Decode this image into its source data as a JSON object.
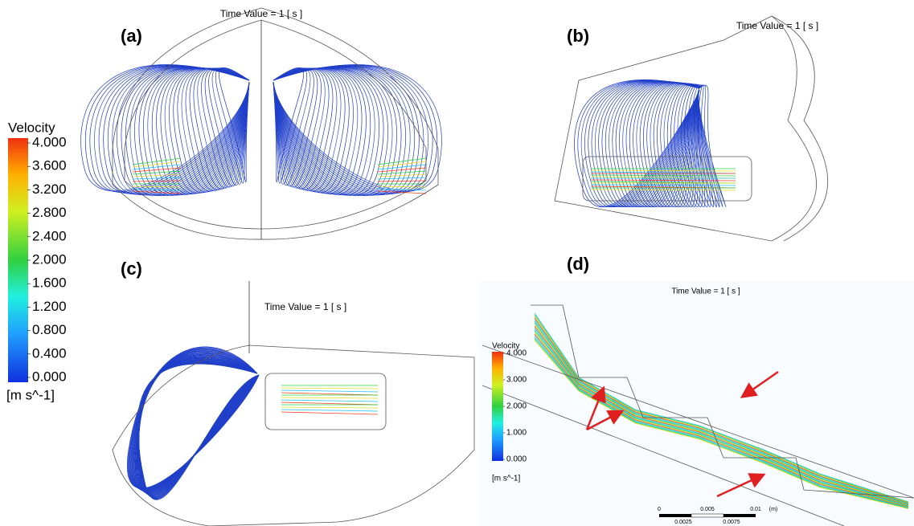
{
  "figure": {
    "legend": {
      "title": "Velocity",
      "lim": [
        0,
        4
      ],
      "unit": "[m s^-1]",
      "ticks": [
        {
          "value": 4,
          "label": "4.000"
        },
        {
          "value": 3.6,
          "label": "3.600"
        },
        {
          "value": 3.2,
          "label": "3.200"
        },
        {
          "value": 2.8,
          "label": "2.800"
        },
        {
          "value": 2.4,
          "label": "2.400"
        },
        {
          "value": 2,
          "label": "2.000"
        },
        {
          "value": 1.6,
          "label": "1.600"
        },
        {
          "value": 1.2,
          "label": "1.200"
        },
        {
          "value": 0.8,
          "label": "0.800"
        },
        {
          "value": 0.4,
          "label": "0.400"
        },
        {
          "value": 0,
          "label": "0.000"
        }
      ]
    },
    "panels": [
      {
        "label": "(a)",
        "time_label": "Time Value = 1 [ s ]"
      },
      {
        "label": "(b)",
        "time_label": "Time Value = 1 [ s ]"
      },
      {
        "label": "(c)",
        "time_label": "Time Value = 1 [ s ]"
      },
      {
        "label": "(d)",
        "time_label": "Time Value = 1 [ s ]",
        "inset_legend": {
          "title": "Velocity",
          "lim": [
            0,
            4
          ],
          "unit": "[m s^-1]",
          "ticks": [
            {
              "value": 4,
              "label": "4.000"
            },
            {
              "value": 3,
              "label": "3.000"
            },
            {
              "value": 2,
              "label": "2.000"
            },
            {
              "value": 1,
              "label": "1.000"
            },
            {
              "value": 0,
              "label": "0.000"
            }
          ]
        },
        "scale_bar": {
          "labels": [
            "0",
            "0.005",
            "0.01",
            "(m)"
          ],
          "sublabels": [
            "0.0025",
            "0.0075"
          ]
        }
      }
    ]
  }
}
